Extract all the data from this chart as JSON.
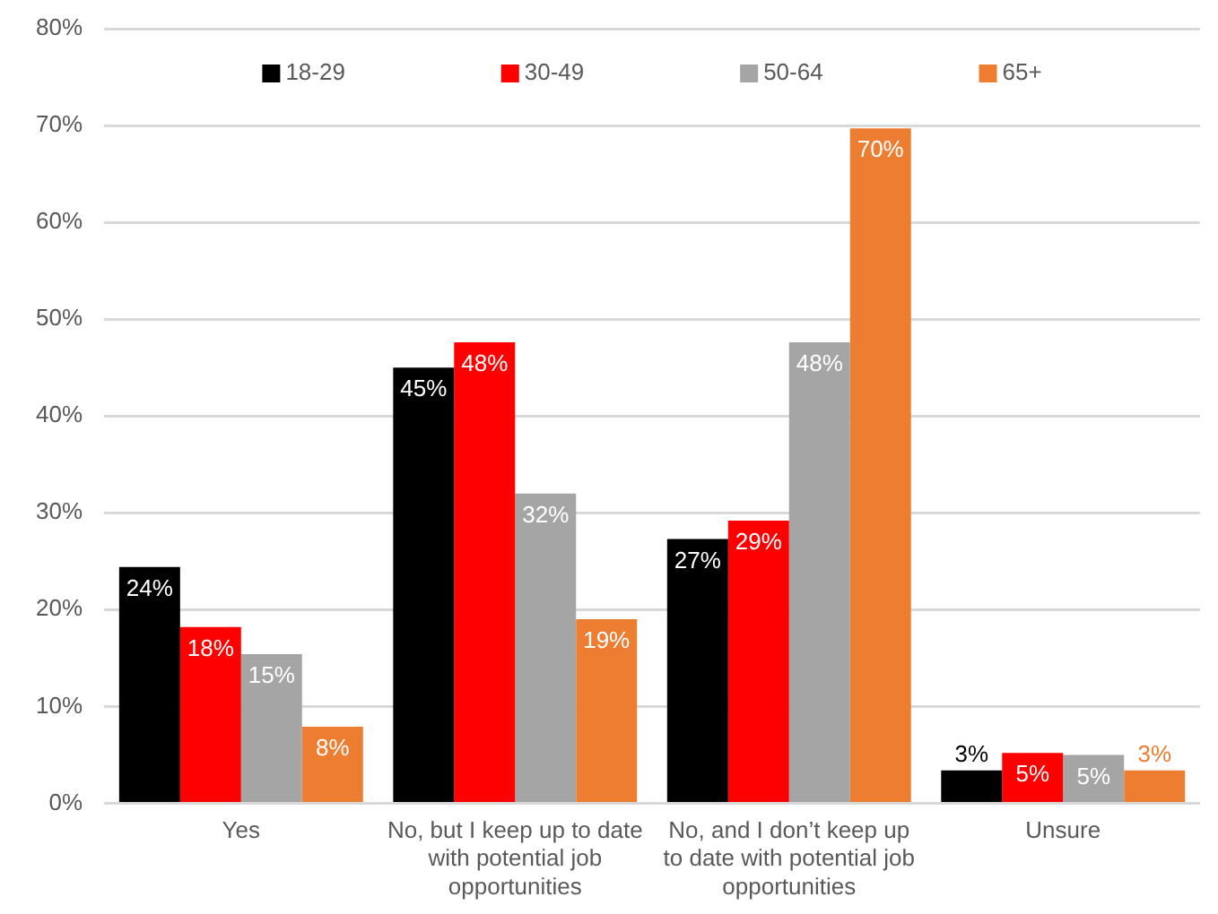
{
  "chart_data": {
    "type": "bar",
    "categories": [
      "Yes",
      "No, but I keep up to date with potential job opportunities",
      "No, and I don’t keep up to date with potential job opportunities",
      "Unsure"
    ],
    "series": [
      {
        "name": "18-29",
        "color": "#000000",
        "values": [
          24.4,
          45,
          27.3,
          3.4
        ],
        "value_labels": [
          "24%",
          "45%",
          "27%",
          "3%"
        ]
      },
      {
        "name": "30-49",
        "color": "#ff0000",
        "values": [
          18.2,
          47.6,
          29.2,
          5.2
        ],
        "value_labels": [
          "18%",
          "48%",
          "29%",
          "5%"
        ]
      },
      {
        "name": "50-64",
        "color": "#a5a5a5",
        "values": [
          15.4,
          32,
          47.6,
          5
        ],
        "value_labels": [
          "15%",
          "32%",
          "48%",
          "5%"
        ]
      },
      {
        "name": "65+",
        "color": "#ed7d31",
        "values": [
          7.9,
          19,
          69.7,
          3.4
        ],
        "value_labels": [
          "8%",
          "19%",
          "70%",
          "3%"
        ]
      }
    ],
    "ylim": [
      0,
      80
    ],
    "yticks": [
      {
        "value": 0,
        "label": "0%"
      },
      {
        "value": 10,
        "label": "10%"
      },
      {
        "value": 20,
        "label": "20%"
      },
      {
        "value": 30,
        "label": "30%"
      },
      {
        "value": 40,
        "label": "40%"
      },
      {
        "value": 50,
        "label": "50%"
      },
      {
        "value": 60,
        "label": "60%"
      },
      {
        "value": 70,
        "label": "70%"
      },
      {
        "value": 80,
        "label": "80%"
      }
    ],
    "grid": "y",
    "legend": "top"
  }
}
